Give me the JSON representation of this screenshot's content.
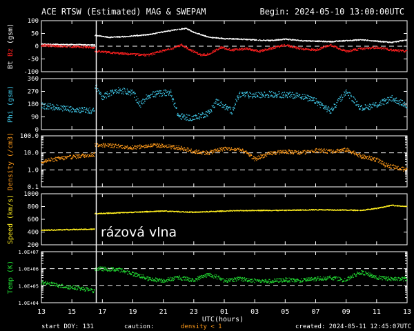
{
  "header": {
    "title": "ACE RTSW (Estimated) MAG & SWEPAM",
    "begin": "Begin: 2024-05-10 13:00:00UTC"
  },
  "footer": {
    "start_doy": "start DOY: 131",
    "caution": "caution:",
    "density_note": "density < 1",
    "created": "created: 2024-05-11 12:45:07UTC"
  },
  "annotation": "rázová vlna",
  "colors": {
    "white": "#ffffff",
    "red": "#ff2020",
    "cyan": "#40c8e8",
    "orange": "#ff9a1a",
    "yellow": "#ffee20",
    "green": "#22dd33",
    "axis": "#ffffff",
    "dashed": "#ffffff"
  },
  "chart_data": [
    {
      "type": "scatter",
      "ylabel_parts": [
        "Bt",
        " ",
        "Bz",
        " (gsm)"
      ],
      "ylabel_colors": [
        "white",
        "white",
        "red",
        "white"
      ],
      "yticks": [
        100,
        50,
        0,
        -50,
        -100
      ],
      "ytick_labels": [
        "100",
        "50",
        "0",
        "-50",
        "-100"
      ],
      "ylim": [
        -100,
        100
      ],
      "dashed": [
        0
      ],
      "series": [
        {
          "color": "white",
          "spread": 2,
          "points": [
            [
              0,
              8
            ],
            [
              3.5,
              5
            ],
            [
              3.6,
              42
            ],
            [
              4.5,
              35
            ],
            [
              5.5,
              38
            ],
            [
              7,
              45
            ],
            [
              8.5,
              62
            ],
            [
              9.5,
              70
            ],
            [
              10,
              55
            ],
            [
              11,
              35
            ],
            [
              12,
              30
            ],
            [
              13,
              28
            ],
            [
              14,
              25
            ],
            [
              15,
              22
            ],
            [
              16,
              28
            ],
            [
              17,
              22
            ],
            [
              18,
              20
            ],
            [
              19,
              18
            ],
            [
              20,
              22
            ],
            [
              21,
              25
            ],
            [
              22,
              20
            ],
            [
              23,
              15
            ],
            [
              24,
              25
            ]
          ]
        },
        {
          "color": "red",
          "spread": 4,
          "points": [
            [
              0,
              3
            ],
            [
              3.5,
              -5
            ],
            [
              3.6,
              -20
            ],
            [
              4.5,
              -25
            ],
            [
              5.5,
              -30
            ],
            [
              7,
              -35
            ],
            [
              8.5,
              -10
            ],
            [
              9.2,
              5
            ],
            [
              9.8,
              -15
            ],
            [
              10.5,
              -35
            ],
            [
              11,
              -30
            ],
            [
              11.8,
              -5
            ],
            [
              12.5,
              -15
            ],
            [
              13.5,
              -10
            ],
            [
              14.3,
              -20
            ],
            [
              15,
              -10
            ],
            [
              16,
              5
            ],
            [
              17,
              -10
            ],
            [
              18,
              -15
            ],
            [
              19,
              5
            ],
            [
              20,
              -20
            ],
            [
              21,
              -10
            ],
            [
              22,
              -5
            ],
            [
              23,
              -15
            ],
            [
              24,
              -20
            ]
          ]
        }
      ]
    },
    {
      "type": "scatter",
      "ylabel_parts": [
        "Phi (gsm)"
      ],
      "ylabel_colors": [
        "cyan"
      ],
      "yticks": [
        360,
        270,
        180,
        90,
        0
      ],
      "ytick_labels": [
        "360",
        "270",
        "180",
        "90",
        "0"
      ],
      "ylim": [
        0,
        360
      ],
      "dashed": [],
      "series": [
        {
          "color": "cyan",
          "spread": 22,
          "points": [
            [
              0,
              170
            ],
            [
              1.5,
              150
            ],
            [
              2.5,
              140
            ],
            [
              3.5,
              130
            ],
            [
              3.6,
              300
            ],
            [
              4,
              230
            ],
            [
              5,
              280
            ],
            [
              6,
              260
            ],
            [
              6.5,
              175
            ],
            [
              7,
              240
            ],
            [
              8,
              260
            ],
            [
              8.5,
              260
            ],
            [
              9,
              95
            ],
            [
              10,
              80
            ],
            [
              11,
              120
            ],
            [
              11.5,
              200
            ],
            [
              12.5,
              130
            ],
            [
              13,
              250
            ],
            [
              14,
              240
            ],
            [
              15,
              250
            ],
            [
              16,
              245
            ],
            [
              17,
              240
            ],
            [
              18,
              200
            ],
            [
              19,
              130
            ],
            [
              20,
              270
            ],
            [
              21,
              150
            ],
            [
              22,
              175
            ],
            [
              23,
              220
            ],
            [
              24,
              170
            ]
          ]
        }
      ]
    },
    {
      "type": "scatter",
      "ylabel_parts": [
        "Density (/cm3)"
      ],
      "ylabel_colors": [
        "orange"
      ],
      "log": true,
      "yticks": [
        100,
        10,
        1,
        0.1
      ],
      "ytick_labels": [
        "100.0",
        "10.0",
        "1.0",
        "0.1"
      ],
      "ylim": [
        0.1,
        100
      ],
      "dashed": [
        10,
        1
      ],
      "series": [
        {
          "color": "orange",
          "spread": 0.12,
          "points": [
            [
              0,
              3
            ],
            [
              1.5,
              5
            ],
            [
              3.5,
              8
            ],
            [
              3.6,
              30
            ],
            [
              5,
              25
            ],
            [
              6,
              20
            ],
            [
              7.5,
              28
            ],
            [
              9,
              20
            ],
            [
              10,
              12
            ],
            [
              11,
              10
            ],
            [
              12,
              18
            ],
            [
              13,
              15
            ],
            [
              14,
              4
            ],
            [
              15,
              9
            ],
            [
              16,
              12
            ],
            [
              17,
              10
            ],
            [
              18,
              14
            ],
            [
              19,
              12
            ],
            [
              20,
              15
            ],
            [
              21,
              6
            ],
            [
              22,
              4
            ],
            [
              22.5,
              2
            ],
            [
              23.5,
              1.2
            ],
            [
              24,
              1.0
            ]
          ]
        }
      ]
    },
    {
      "type": "scatter",
      "ylabel_parts": [
        "Speed (km/s)"
      ],
      "ylabel_colors": [
        "yellow"
      ],
      "yticks": [
        1000,
        800,
        600,
        400,
        200
      ],
      "ytick_labels": [
        "1000",
        "800",
        "600",
        "400",
        "200"
      ],
      "ylim": [
        200,
        1000
      ],
      "dashed": [],
      "series": [
        {
          "color": "yellow",
          "spread": 7,
          "points": [
            [
              0,
              430
            ],
            [
              3.5,
              445
            ],
            [
              3.6,
              690
            ],
            [
              6,
              710
            ],
            [
              8,
              730
            ],
            [
              10,
              710
            ],
            [
              12,
              730
            ],
            [
              14,
              740
            ],
            [
              16,
              740
            ],
            [
              18,
              750
            ],
            [
              20,
              745
            ],
            [
              21,
              740
            ],
            [
              22,
              770
            ],
            [
              23,
              820
            ],
            [
              24,
              800
            ]
          ]
        }
      ]
    },
    {
      "type": "scatter",
      "ylabel_parts": [
        "Temp (K)"
      ],
      "ylabel_colors": [
        "green"
      ],
      "log": true,
      "yticks": [
        10000000,
        1000000,
        100000,
        10000
      ],
      "ytick_labels": [
        "1.0E+07",
        "1.0E+06",
        "1.0E+05",
        "1.0E+04"
      ],
      "ylim": [
        10000,
        10000000
      ],
      "dashed": [
        1000000,
        100000
      ],
      "series": [
        {
          "color": "green",
          "spread": 0.12,
          "points": [
            [
              0,
              150000
            ],
            [
              1.5,
              90000
            ],
            [
              3,
              60000
            ],
            [
              3.5,
              45000
            ],
            [
              3.6,
              1000000
            ],
            [
              5,
              900000
            ],
            [
              6,
              500000
            ],
            [
              7,
              250000
            ],
            [
              8,
              200000
            ],
            [
              9,
              300000
            ],
            [
              10,
              200000
            ],
            [
              11,
              450000
            ],
            [
              12,
              200000
            ],
            [
              13,
              250000
            ],
            [
              14,
              200000
            ],
            [
              15,
              180000
            ],
            [
              16,
              220000
            ],
            [
              17,
              200000
            ],
            [
              18,
              250000
            ],
            [
              19,
              300000
            ],
            [
              20,
              200000
            ],
            [
              21,
              600000
            ],
            [
              22,
              300000
            ],
            [
              23,
              250000
            ],
            [
              24,
              250000
            ]
          ]
        }
      ]
    }
  ],
  "x_axis": {
    "xlabel": "UTC(hours)",
    "xlim": [
      0,
      24
    ],
    "tick_labels": [
      "13",
      "15",
      "17",
      "19",
      "21",
      "23",
      "01",
      "03",
      "05",
      "07",
      "09",
      "11",
      "13"
    ],
    "shock_hour": 3.6
  }
}
